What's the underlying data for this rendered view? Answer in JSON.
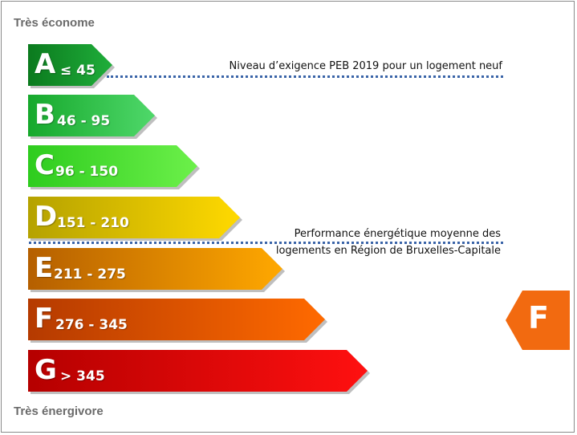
{
  "scale": {
    "top_label": "Très économe",
    "bottom_label": "Très énergivore"
  },
  "bands": [
    {
      "letter": "A",
      "range": "≤ 45",
      "color_start": "#0b7a1e",
      "color_end": "#1fae3a"
    },
    {
      "letter": "B",
      "range": "46 - 95",
      "color_start": "#16a82c",
      "color_end": "#4fd86a"
    },
    {
      "letter": "C",
      "range": "96 - 150",
      "color_start": "#2ecc1e",
      "color_end": "#6cf04a"
    },
    {
      "letter": "D",
      "range": "151 - 210",
      "color_start": "#b5a200",
      "color_end": "#ffd900"
    },
    {
      "letter": "E",
      "range": "211 - 275",
      "color_start": "#b55f00",
      "color_end": "#ffa800"
    },
    {
      "letter": "F",
      "range": "276 - 345",
      "color_start": "#b53a00",
      "color_end": "#ff6a00"
    },
    {
      "letter": "G",
      "range": "> 345",
      "color_start": "#b50000",
      "color_end": "#ff1010"
    }
  ],
  "annotations": {
    "peb_requirement": "Niveau d’exigence PEB 2019 pour un logement neuf",
    "average_line1": "Performance énergétique moyenne des",
    "average_line2": "logements en Région de Bruxelles-Capitale"
  },
  "current_rating": {
    "letter": "F",
    "color": "#f26a10"
  }
}
